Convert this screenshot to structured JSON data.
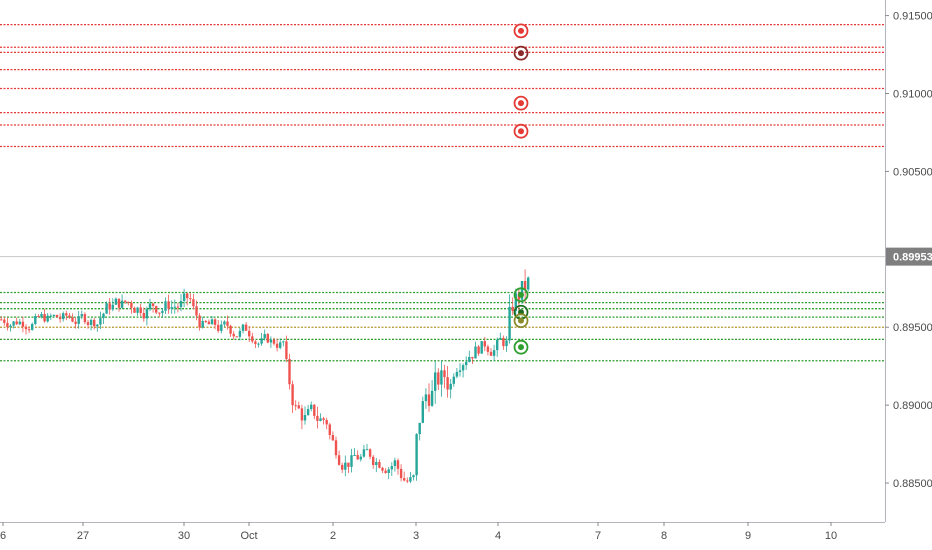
{
  "chart_data": {
    "type": "candlestick",
    "y_axis": {
      "ylim": [
        0.8825,
        0.916
      ],
      "ticks": [
        {
          "value": 0.915,
          "label": "0.91500"
        },
        {
          "value": 0.91,
          "label": "0.91000"
        },
        {
          "value": 0.905,
          "label": "0.90500"
        },
        {
          "value": 0.895,
          "label": "0.89500"
        },
        {
          "value": 0.89,
          "label": "0.89000"
        },
        {
          "value": 0.885,
          "label": "0.88500"
        }
      ]
    },
    "x_axis": {
      "ticks": [
        "6",
        "27",
        "30",
        "Oct",
        "2",
        "3",
        "4",
        "7",
        "8",
        "9",
        "10"
      ]
    },
    "current_price": {
      "value": 0.89953,
      "label": "0.89953"
    },
    "resistance_lines": [
      0.91442,
      0.91297,
      0.91264,
      0.91153,
      0.91032,
      0.90877,
      0.90798,
      0.9066
    ],
    "support_lines": [
      0.89723,
      0.89658,
      0.89619,
      0.89565,
      0.89422,
      0.89285
    ],
    "pivot_line": 0.895,
    "resistance_markers": [
      {
        "value": 0.91402,
        "shade": "light"
      },
      {
        "value": 0.91259,
        "shade": "dark"
      },
      {
        "value": 0.90938,
        "shade": "light"
      },
      {
        "value": 0.90758,
        "shade": "light"
      }
    ],
    "support_markers": [
      {
        "value": 0.89708,
        "shade": "light"
      },
      {
        "value": 0.89596,
        "shade": "dark"
      },
      {
        "value": 0.89542,
        "shade": "olive"
      },
      {
        "value": 0.89372,
        "shade": "light"
      }
    ],
    "candle_sections": [
      {
        "center": 0.8955,
        "amp": 0.0006,
        "count": 32
      },
      {
        "center": 0.8965,
        "amp": 0.0008,
        "count": 30
      },
      {
        "center": 0.8948,
        "amp": 0.0007,
        "count": 20
      },
      {
        "center": 0.894,
        "amp": 0.0006,
        "count": 10
      },
      {
        "center": 0.889,
        "amp": 0.001,
        "count": 14
      },
      {
        "center": 0.8866,
        "amp": 0.0008,
        "count": 22
      },
      {
        "center": 0.885,
        "amp": 0.0008,
        "count": 6
      },
      {
        "center": 0.8915,
        "amp": 0.0015,
        "count": 12
      },
      {
        "center": 0.894,
        "amp": 0.0008,
        "count": 18
      },
      {
        "center": 0.8975,
        "amp": 0.0015,
        "count": 12
      },
      {
        "center": 0.899,
        "amp": 0.0006,
        "count": 10
      }
    ],
    "colors": {
      "up": "#26a69a",
      "down": "#ef5350",
      "resistance": "#e53935",
      "support": "#2e9e2e",
      "pivot": "#b8962e",
      "marker_dark": "#8b2a2a",
      "marker_green_dark": "#1f6b1f",
      "marker_olive": "#8a8a2a",
      "current_price_line": "#c8c8c8",
      "price_badge": "#7f7f7f"
    }
  }
}
